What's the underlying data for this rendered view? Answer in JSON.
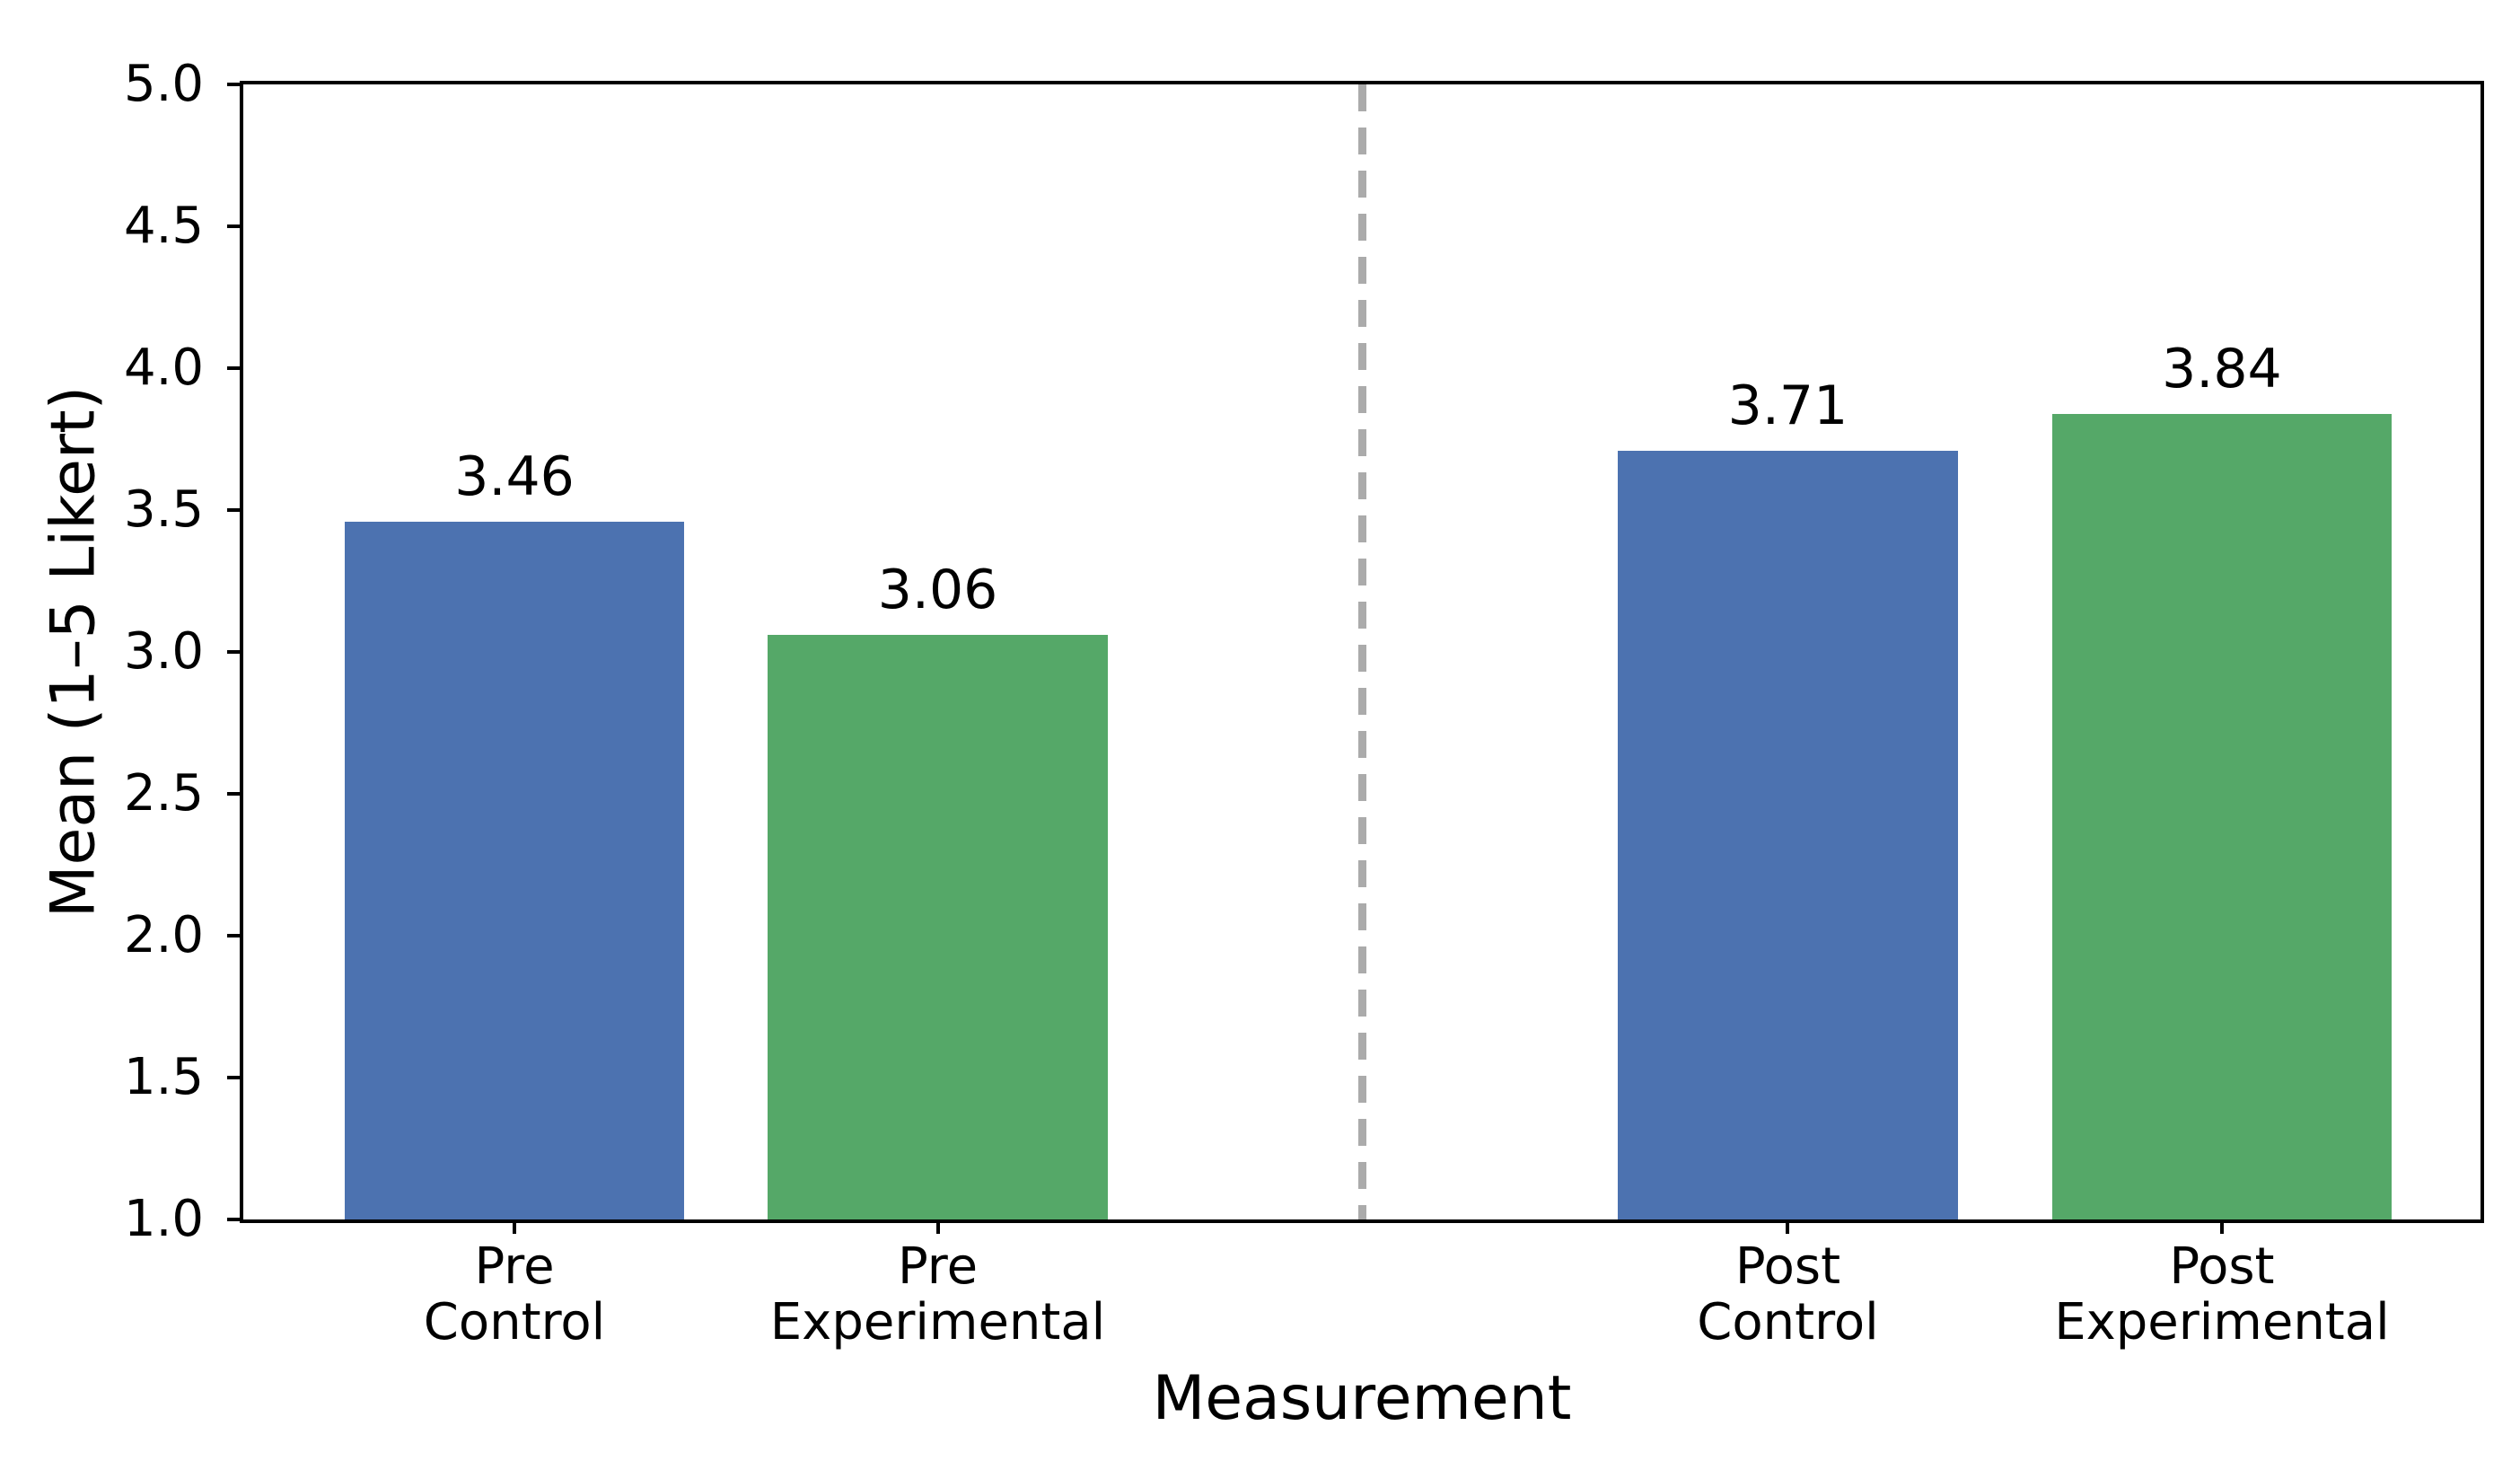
{
  "figure": {
    "background_color": "#ffffff",
    "text_color": "#000000",
    "spine_color": "#000000"
  },
  "chart_data": {
    "type": "bar",
    "title": "",
    "xlabel": "Measurement",
    "ylabel": "Mean (1–5 Likert)",
    "ylim": [
      1.0,
      5.0
    ],
    "yticks": [
      "1.0",
      "1.5",
      "2.0",
      "2.5",
      "3.0",
      "3.5",
      "4.0",
      "4.5",
      "5.0"
    ],
    "grid": false,
    "legend": "none",
    "categories": [
      "Pre Control",
      "Pre Experimental",
      "Post Control",
      "Post Experimental"
    ],
    "values": [
      3.46,
      3.06,
      3.71,
      3.84
    ],
    "bars": [
      {
        "id": "pre-control",
        "label_lines": [
          "Pre",
          "Control"
        ],
        "value": 3.46,
        "value_label": "3.46",
        "color": "#4C72B0",
        "center_pct": 12.12
      },
      {
        "id": "pre-experimental",
        "label_lines": [
          "Pre",
          "Experimental"
        ],
        "value": 3.06,
        "value_label": "3.06",
        "color": "#55A868",
        "center_pct": 31.04
      },
      {
        "id": "post-control",
        "label_lines": [
          "Post",
          "Control"
        ],
        "value": 3.71,
        "value_label": "3.71",
        "color": "#4C72B0",
        "center_pct": 69.04
      },
      {
        "id": "post-experimental",
        "label_lines": [
          "Post",
          "Experimental"
        ],
        "value": 3.84,
        "value_label": "3.84",
        "color": "#55A868",
        "center_pct": 88.44
      }
    ],
    "bar_width_pct": 15.2,
    "series_colors": {
      "control": "#4C72B0",
      "experimental": "#55A868"
    },
    "separator": {
      "style": "dashed",
      "color": "#ABABAB",
      "x_pct": 50.0
    }
  }
}
